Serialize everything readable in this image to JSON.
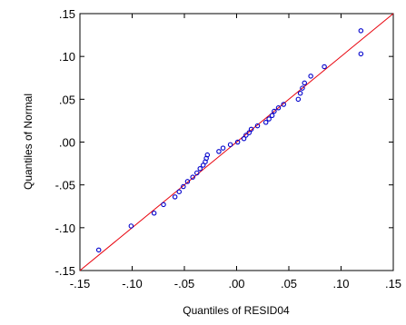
{
  "chart_data": {
    "type": "scatter",
    "xlabel": "Quantiles of RESID04",
    "ylabel": "Quantiles of Normal",
    "xlim": [
      -0.15,
      0.15
    ],
    "ylim": [
      -0.15,
      0.15
    ],
    "xticks": [
      "-.15",
      "-.10",
      "-.05",
      ".00",
      ".05",
      ".10",
      ".15"
    ],
    "yticks": [
      ".15",
      ".10",
      ".05",
      ".00",
      "-.05",
      "-.10",
      "-.15"
    ],
    "grid": false,
    "reference_line": {
      "from": [
        -0.15,
        -0.15
      ],
      "to": [
        0.15,
        0.15
      ],
      "color": "#e8000b"
    },
    "marker_color": "#0000cc",
    "points": [
      {
        "x": -0.132,
        "y": -0.126
      },
      {
        "x": -0.101,
        "y": -0.098
      },
      {
        "x": -0.079,
        "y": -0.083
      },
      {
        "x": -0.07,
        "y": -0.073
      },
      {
        "x": -0.059,
        "y": -0.064
      },
      {
        "x": -0.055,
        "y": -0.058
      },
      {
        "x": -0.051,
        "y": -0.052
      },
      {
        "x": -0.047,
        "y": -0.046
      },
      {
        "x": -0.042,
        "y": -0.041
      },
      {
        "x": -0.038,
        "y": -0.036
      },
      {
        "x": -0.035,
        "y": -0.031
      },
      {
        "x": -0.032,
        "y": -0.027
      },
      {
        "x": -0.03,
        "y": -0.023
      },
      {
        "x": -0.029,
        "y": -0.019
      },
      {
        "x": -0.028,
        "y": -0.015
      },
      {
        "x": -0.017,
        "y": -0.011
      },
      {
        "x": -0.013,
        "y": -0.007
      },
      {
        "x": -0.006,
        "y": -0.003
      },
      {
        "x": 0.001,
        "y": 0.0
      },
      {
        "x": 0.007,
        "y": 0.004
      },
      {
        "x": 0.009,
        "y": 0.008
      },
      {
        "x": 0.012,
        "y": 0.011
      },
      {
        "x": 0.014,
        "y": 0.015
      },
      {
        "x": 0.02,
        "y": 0.019
      },
      {
        "x": 0.028,
        "y": 0.023
      },
      {
        "x": 0.031,
        "y": 0.027
      },
      {
        "x": 0.034,
        "y": 0.031
      },
      {
        "x": 0.036,
        "y": 0.036
      },
      {
        "x": 0.04,
        "y": 0.04
      },
      {
        "x": 0.045,
        "y": 0.044
      },
      {
        "x": 0.059,
        "y": 0.05
      },
      {
        "x": 0.061,
        "y": 0.057
      },
      {
        "x": 0.063,
        "y": 0.063
      },
      {
        "x": 0.065,
        "y": 0.069
      },
      {
        "x": 0.071,
        "y": 0.077
      },
      {
        "x": 0.084,
        "y": 0.088
      },
      {
        "x": 0.119,
        "y": 0.103
      },
      {
        "x": 0.119,
        "y": 0.13
      }
    ]
  }
}
